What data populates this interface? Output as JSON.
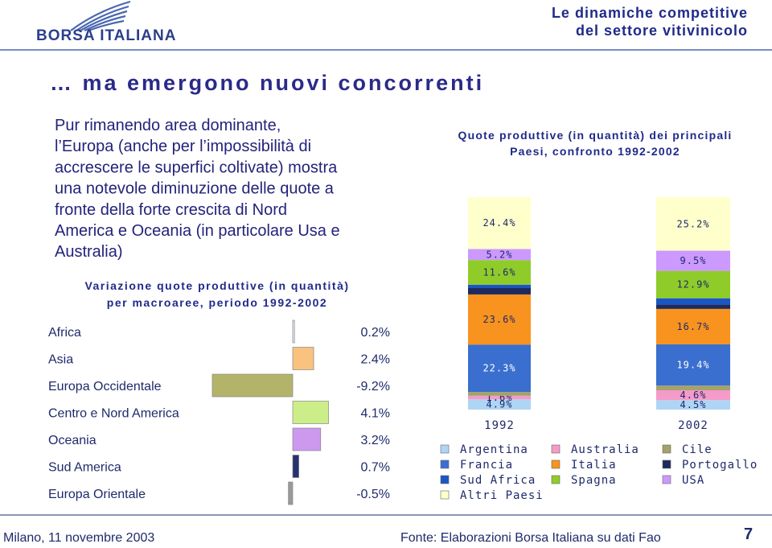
{
  "header": {
    "logo": "BORSA ITALIANA",
    "title": [
      "Le dinamiche competitive",
      "del settore vitivinicolo"
    ]
  },
  "heading": "… ma emergono nuovi concorrenti",
  "body": [
    "Pur rimanendo area dominante,",
    "l’Europa (anche per l’impossibilità di",
    "accrescere le superfici coltivate) mostra",
    "una notevole diminuzione delle quote a",
    "fronte della forte crescita di Nord",
    "America e Oceania (in particolare Usa e",
    "Australia)"
  ],
  "chart_data": [
    {
      "type": "hbar",
      "title": [
        "Variazione quote produttive (in quantità)",
        "per macroaree, periodo 1992-2002"
      ],
      "categories": [
        "Africa",
        "Asia",
        "Europa Occidentale",
        "Centro e Nord America",
        "Oceania",
        "Sud America",
        "Europa Orientale"
      ],
      "values": [
        0.2,
        2.4,
        -9.2,
        4.1,
        3.2,
        0.7,
        -0.5
      ],
      "value_labels": [
        "0.2%",
        "2.4%",
        "-9.2%",
        "4.1%",
        "3.2%",
        "0.7%",
        "-0.5%"
      ],
      "colors": [
        "#dce6f4",
        "#f9c27f",
        "#b3b36a",
        "#ccee88",
        "#cc99ee",
        "#27326e",
        "#9a9a9a"
      ]
    },
    {
      "type": "stacked_bar",
      "title": [
        "Quote produttive (in quantità) dei principali",
        "Paesi, confronto 1992-2002"
      ],
      "categories": [
        "1992",
        "2002"
      ],
      "series": [
        {
          "name": "Argentina",
          "color": "#b0d4f4",
          "values": [
            4.9,
            4.5
          ],
          "value_labels": [
            "4.9%",
            "4.5%"
          ]
        },
        {
          "name": "Australia",
          "color": "#f59bc9",
          "values": [
            1.6,
            4.6
          ],
          "value_labels": [
            "1.6%",
            "4.6%"
          ]
        },
        {
          "name": "Cile",
          "color": "#a3a36a",
          "values": [
            1.8,
            2.2
          ],
          "value_labels": [
            null,
            null
          ]
        },
        {
          "name": "Francia",
          "color": "#3a6fd0",
          "values": [
            22.3,
            19.4
          ],
          "value_labels": [
            "22.3%",
            "19.4%"
          ]
        },
        {
          "name": "Italia",
          "color": "#f7931e",
          "values": [
            23.6,
            16.7
          ],
          "value_labels": [
            "23.6%",
            "16.7%"
          ]
        },
        {
          "name": "Portogallo",
          "color": "#1e2a5e",
          "values": [
            3.0,
            2.0
          ],
          "value_labels": [
            null,
            null
          ]
        },
        {
          "name": "Sud Africa",
          "color": "#1b56c4",
          "values": [
            1.6,
            3.0
          ],
          "value_labels": [
            null,
            null
          ]
        },
        {
          "name": "Spagna",
          "color": "#8fcc2a",
          "values": [
            11.6,
            12.9
          ],
          "value_labels": [
            "11.6%",
            "12.9%"
          ]
        },
        {
          "name": "USA",
          "color": "#cc99ff",
          "values": [
            5.2,
            9.5
          ],
          "value_labels": [
            "5.2%",
            "9.5%"
          ]
        },
        {
          "name": "Altri Paesi",
          "color": "#ffffcc",
          "values": [
            24.4,
            25.2
          ],
          "value_labels": [
            "24.4%",
            "25.2%"
          ]
        }
      ]
    }
  ],
  "footer": {
    "place_date": "Milano, 11 novembre 2003",
    "source": "Fonte: Elaborazioni Borsa Italiana su dati Fao",
    "page": "7"
  }
}
